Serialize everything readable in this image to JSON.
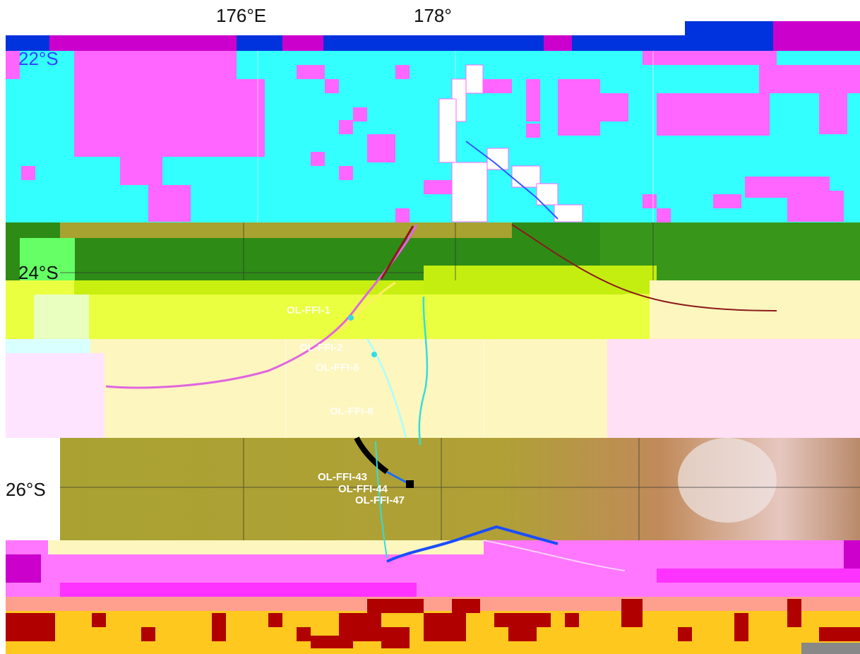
{
  "map": {
    "longitude_labels": [
      "176°E",
      "178°"
    ],
    "latitude_labels": [
      "22°S",
      "24°S",
      "26°S"
    ],
    "station_labels": [
      "OL-FFI-1",
      "OL-FFI-2",
      "OL-FFI-6",
      "OL-FFI-8",
      "OL-FFI-43",
      "OL-FFI-44",
      "OL-FFI-47"
    ],
    "colors": {
      "cyan_band": "#33ffff",
      "magenta_blocks": "#ff66ff",
      "green_band": "#2e8b16",
      "yellow_band": "#eaff40",
      "cream_band": "#fdf6bf",
      "olive_terrain": "#a8a230",
      "pink_band": "#ff77ff",
      "orange_band": "#ffc81e",
      "dark_red_blocks": "#b00000",
      "blue_track": "#1a4dff",
      "black_track": "#000000"
    }
  }
}
